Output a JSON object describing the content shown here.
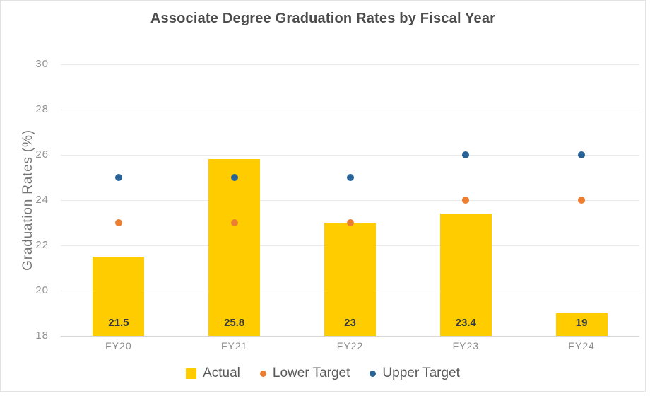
{
  "chart_data": {
    "type": "bar",
    "title": "Associate Degree Graduation Rates by Fiscal Year",
    "xlabel": "",
    "ylabel": "Graduation Rates (%)",
    "categories": [
      "FY20",
      "FY21",
      "FY22",
      "FY23",
      "FY24"
    ],
    "series": [
      {
        "name": "Actual",
        "type": "bar",
        "color": "#FFCC00",
        "values": [
          21.5,
          25.8,
          23,
          23.4,
          19
        ],
        "labels": [
          "21.5",
          "25.8",
          "23",
          "23.4",
          "19"
        ]
      },
      {
        "name": "Lower Target",
        "type": "point",
        "color": "#ED7D31",
        "values": [
          23,
          23,
          23,
          24,
          24
        ]
      },
      {
        "name": "Upper Target",
        "type": "point",
        "color": "#2A6397",
        "values": [
          25,
          25,
          25,
          26,
          26
        ]
      }
    ],
    "ylim": [
      18,
      30
    ],
    "ytick_step": 2,
    "ytick_labels": [
      "18",
      "20",
      "22",
      "24",
      "26",
      "28",
      "30"
    ],
    "grid": true,
    "legend_position": "bottom"
  }
}
